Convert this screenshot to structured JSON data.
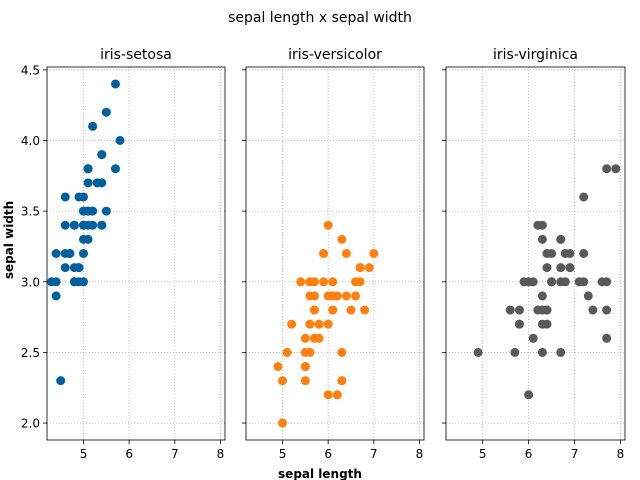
{
  "chart_data": {
    "type": "scatter",
    "title": "sepal length x sepal width",
    "xlabel": "sepal length",
    "ylabel": "sepal width",
    "xlim": [
      4.2,
      8.1
    ],
    "ylim": [
      1.88,
      4.52
    ],
    "xticks": [
      5,
      6,
      7,
      8
    ],
    "yticks": [
      2.0,
      2.5,
      3.0,
      3.5,
      4.0,
      4.5
    ],
    "xtick_labels": [
      "5",
      "6",
      "7",
      "8"
    ],
    "ytick_labels": [
      "2.0",
      "2.5",
      "3.0",
      "3.5",
      "4.0",
      "4.5"
    ],
    "grid": true,
    "sharey": true,
    "panels": [
      {
        "title": "iris-setosa",
        "color": "#00609e",
        "points": [
          [
            5.1,
            3.5
          ],
          [
            4.9,
            3.0
          ],
          [
            4.7,
            3.2
          ],
          [
            4.6,
            3.1
          ],
          [
            5.0,
            3.6
          ],
          [
            5.4,
            3.9
          ],
          [
            4.6,
            3.4
          ],
          [
            5.0,
            3.4
          ],
          [
            4.4,
            2.9
          ],
          [
            4.9,
            3.1
          ],
          [
            5.4,
            3.7
          ],
          [
            4.8,
            3.4
          ],
          [
            4.8,
            3.0
          ],
          [
            4.3,
            3.0
          ],
          [
            5.8,
            4.0
          ],
          [
            5.7,
            4.4
          ],
          [
            5.4,
            3.9
          ],
          [
            5.1,
            3.5
          ],
          [
            5.7,
            3.8
          ],
          [
            5.1,
            3.8
          ],
          [
            5.4,
            3.4
          ],
          [
            5.1,
            3.7
          ],
          [
            4.6,
            3.6
          ],
          [
            5.1,
            3.3
          ],
          [
            4.8,
            3.4
          ],
          [
            5.0,
            3.0
          ],
          [
            5.0,
            3.4
          ],
          [
            5.2,
            3.5
          ],
          [
            5.2,
            3.4
          ],
          [
            4.7,
            3.2
          ],
          [
            4.8,
            3.1
          ],
          [
            5.4,
            3.4
          ],
          [
            5.2,
            4.1
          ],
          [
            5.5,
            4.2
          ],
          [
            4.9,
            3.1
          ],
          [
            5.0,
            3.2
          ],
          [
            5.5,
            3.5
          ],
          [
            4.9,
            3.6
          ],
          [
            4.4,
            3.0
          ],
          [
            5.1,
            3.4
          ],
          [
            5.0,
            3.5
          ],
          [
            4.5,
            2.3
          ],
          [
            4.4,
            3.2
          ],
          [
            5.0,
            3.5
          ],
          [
            5.1,
            3.8
          ],
          [
            4.8,
            3.0
          ],
          [
            5.1,
            3.8
          ],
          [
            4.6,
            3.2
          ],
          [
            5.3,
            3.7
          ],
          [
            5.0,
            3.3
          ]
        ]
      },
      {
        "title": "iris-versicolor",
        "color": "#ff800e",
        "points": [
          [
            7.0,
            3.2
          ],
          [
            6.4,
            3.2
          ],
          [
            6.9,
            3.1
          ],
          [
            5.5,
            2.3
          ],
          [
            6.5,
            2.8
          ],
          [
            5.7,
            2.8
          ],
          [
            6.3,
            3.3
          ],
          [
            4.9,
            2.4
          ],
          [
            6.6,
            2.9
          ],
          [
            5.2,
            2.7
          ],
          [
            5.0,
            2.0
          ],
          [
            5.9,
            3.0
          ],
          [
            6.0,
            2.2
          ],
          [
            6.1,
            2.9
          ],
          [
            5.6,
            2.9
          ],
          [
            6.7,
            3.1
          ],
          [
            5.6,
            3.0
          ],
          [
            5.8,
            2.7
          ],
          [
            6.2,
            2.2
          ],
          [
            5.6,
            2.5
          ],
          [
            5.9,
            3.2
          ],
          [
            6.1,
            2.8
          ],
          [
            6.3,
            2.5
          ],
          [
            6.1,
            2.8
          ],
          [
            6.4,
            2.9
          ],
          [
            6.6,
            3.0
          ],
          [
            6.8,
            2.8
          ],
          [
            6.7,
            3.0
          ],
          [
            6.0,
            2.9
          ],
          [
            5.7,
            2.6
          ],
          [
            5.5,
            2.4
          ],
          [
            5.5,
            2.4
          ],
          [
            5.8,
            2.7
          ],
          [
            6.0,
            2.7
          ],
          [
            5.4,
            3.0
          ],
          [
            6.0,
            3.4
          ],
          [
            6.7,
            3.1
          ],
          [
            6.3,
            2.3
          ],
          [
            5.6,
            3.0
          ],
          [
            5.5,
            2.5
          ],
          [
            5.5,
            2.6
          ],
          [
            6.1,
            3.0
          ],
          [
            5.8,
            2.6
          ],
          [
            5.0,
            2.3
          ],
          [
            5.6,
            2.7
          ],
          [
            5.7,
            3.0
          ],
          [
            5.7,
            2.9
          ],
          [
            6.2,
            2.9
          ],
          [
            5.1,
            2.5
          ],
          [
            5.7,
            2.8
          ]
        ]
      },
      {
        "title": "iris-virginica",
        "color": "#595959",
        "points": [
          [
            6.3,
            3.3
          ],
          [
            5.8,
            2.7
          ],
          [
            7.1,
            3.0
          ],
          [
            6.3,
            2.9
          ],
          [
            6.5,
            3.0
          ],
          [
            7.6,
            3.0
          ],
          [
            4.9,
            2.5
          ],
          [
            7.3,
            2.9
          ],
          [
            6.7,
            2.5
          ],
          [
            7.2,
            3.6
          ],
          [
            6.5,
            3.2
          ],
          [
            6.4,
            2.7
          ],
          [
            6.8,
            3.0
          ],
          [
            5.7,
            2.5
          ],
          [
            5.8,
            2.8
          ],
          [
            6.4,
            3.2
          ],
          [
            6.5,
            3.0
          ],
          [
            7.7,
            3.8
          ],
          [
            7.7,
            2.6
          ],
          [
            6.0,
            2.2
          ],
          [
            6.9,
            3.2
          ],
          [
            5.6,
            2.8
          ],
          [
            7.7,
            2.8
          ],
          [
            6.3,
            2.7
          ],
          [
            6.7,
            3.3
          ],
          [
            7.2,
            3.2
          ],
          [
            6.2,
            2.8
          ],
          [
            6.1,
            3.0
          ],
          [
            6.4,
            2.8
          ],
          [
            7.2,
            3.0
          ],
          [
            7.4,
            2.8
          ],
          [
            7.9,
            3.8
          ],
          [
            6.4,
            2.8
          ],
          [
            6.3,
            2.8
          ],
          [
            6.1,
            2.6
          ],
          [
            7.7,
            3.0
          ],
          [
            6.3,
            3.4
          ],
          [
            6.4,
            3.1
          ],
          [
            6.0,
            3.0
          ],
          [
            6.9,
            3.1
          ],
          [
            6.7,
            3.1
          ],
          [
            6.9,
            3.1
          ],
          [
            5.8,
            2.7
          ],
          [
            6.8,
            3.2
          ],
          [
            6.7,
            3.3
          ],
          [
            6.7,
            3.0
          ],
          [
            6.3,
            2.5
          ],
          [
            6.5,
            3.0
          ],
          [
            6.2,
            3.4
          ],
          [
            5.9,
            3.0
          ]
        ]
      }
    ]
  }
}
